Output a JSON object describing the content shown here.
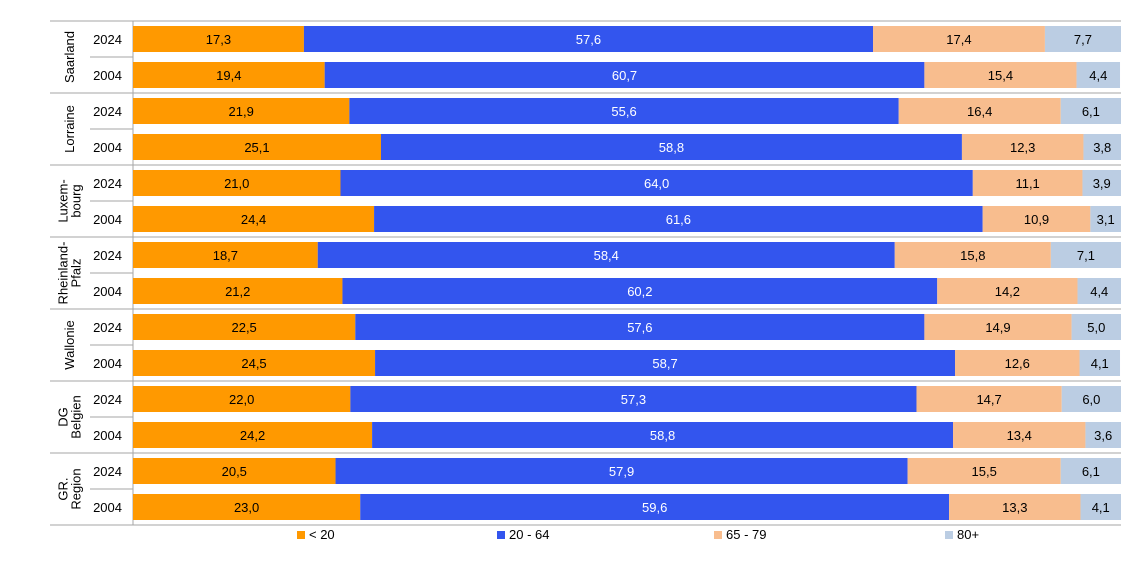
{
  "chart_data": {
    "type": "bar",
    "orientation": "horizontal",
    "stacked": true,
    "title": "",
    "xlabel": "",
    "ylabel": "",
    "xlim": [
      0,
      100
    ],
    "grid": false,
    "legend_position": "bottom",
    "colors": {
      "< 20": "#FF9900",
      "20 - 64": "#3355EE",
      "65 - 79": "#F8BD8E",
      "80+": "#BBCDE3"
    },
    "groups": [
      {
        "label": "Saarland",
        "rows": [
          {
            "year": "2024",
            "values": [
              17.3,
              57.6,
              17.4,
              7.7
            ],
            "labels": [
              "17,3",
              "57,6",
              "17,4",
              "7,7"
            ]
          },
          {
            "year": "2004",
            "values": [
              19.4,
              60.7,
              15.4,
              4.4
            ],
            "labels": [
              "19,4",
              "60,7",
              "15,4",
              "4,4"
            ]
          }
        ]
      },
      {
        "label": "Lorraine",
        "rows": [
          {
            "year": "2024",
            "values": [
              21.9,
              55.6,
              16.4,
              6.1
            ],
            "labels": [
              "21,9",
              "55,6",
              "16,4",
              "6,1"
            ]
          },
          {
            "year": "2004",
            "values": [
              25.1,
              58.8,
              12.3,
              3.8
            ],
            "labels": [
              "25,1",
              "58,8",
              "12,3",
              "3,8"
            ]
          }
        ]
      },
      {
        "label": "Luxem-\nbourg",
        "rows": [
          {
            "year": "2024",
            "values": [
              21.0,
              64.0,
              11.1,
              3.9
            ],
            "labels": [
              "21,0",
              "64,0",
              "11,1",
              "3,9"
            ]
          },
          {
            "year": "2004",
            "values": [
              24.4,
              61.6,
              10.9,
              3.1
            ],
            "labels": [
              "24,4",
              "61,6",
              "10,9",
              "3,1"
            ]
          }
        ]
      },
      {
        "label": "Rheinland-\nPfalz",
        "rows": [
          {
            "year": "2024",
            "values": [
              18.7,
              58.4,
              15.8,
              7.1
            ],
            "labels": [
              "18,7",
              "58,4",
              "15,8",
              "7,1"
            ]
          },
          {
            "year": "2004",
            "values": [
              21.2,
              60.2,
              14.2,
              4.4
            ],
            "labels": [
              "21,2",
              "60,2",
              "14,2",
              "4,4"
            ]
          }
        ]
      },
      {
        "label": "Wallonie",
        "rows": [
          {
            "year": "2024",
            "values": [
              22.5,
              57.6,
              14.9,
              5.0
            ],
            "labels": [
              "22,5",
              "57,6",
              "14,9",
              "5,0"
            ]
          },
          {
            "year": "2004",
            "values": [
              24.5,
              58.7,
              12.6,
              4.1
            ],
            "labels": [
              "24,5",
              "58,7",
              "12,6",
              "4,1"
            ]
          }
        ]
      },
      {
        "label": "DG\nBelgien",
        "rows": [
          {
            "year": "2024",
            "values": [
              22.0,
              57.3,
              14.7,
              6.0
            ],
            "labels": [
              "22,0",
              "57,3",
              "14,7",
              "6,0"
            ]
          },
          {
            "year": "2004",
            "values": [
              24.2,
              58.8,
              13.4,
              3.6
            ],
            "labels": [
              "24,2",
              "58,8",
              "13,4",
              "3,6"
            ]
          }
        ]
      },
      {
        "label": "GR.\nRegion",
        "rows": [
          {
            "year": "2024",
            "values": [
              20.5,
              57.9,
              15.5,
              6.1
            ],
            "labels": [
              "20,5",
              "57,9",
              "15,5",
              "6,1"
            ]
          },
          {
            "year": "2004",
            "values": [
              23.0,
              59.6,
              13.3,
              4.1
            ],
            "labels": [
              "23,0",
              "59,6",
              "13,3",
              "4,1"
            ]
          }
        ]
      }
    ],
    "series": [
      {
        "name": "< 20"
      },
      {
        "name": "20 - 64"
      },
      {
        "name": "65 - 79"
      },
      {
        "name": "80+"
      }
    ]
  }
}
